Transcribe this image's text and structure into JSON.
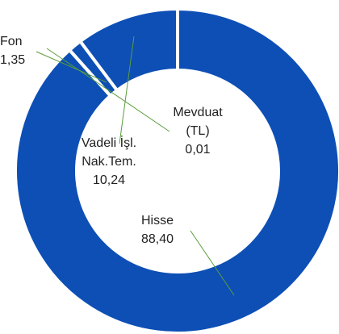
{
  "chart_data": {
    "type": "donut",
    "categories": [
      "Hisse",
      "Mevduat (TL)",
      "Fon",
      "Vadeli İşl. Nak.Tem."
    ],
    "values": [
      88.4,
      0.01,
      1.35,
      10.24
    ],
    "value_labels": [
      "88,40",
      "0,01",
      "1,35",
      "10,24"
    ],
    "color": "#0d4fb5",
    "leader_color": "#5a9e3a"
  }
}
